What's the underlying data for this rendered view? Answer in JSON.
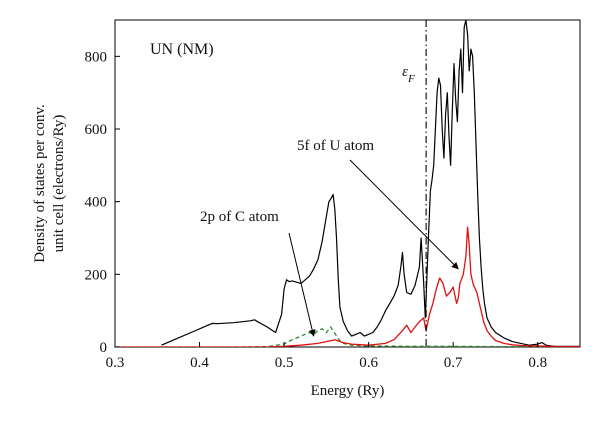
{
  "chart_data": {
    "type": "line",
    "title": "UN (NM)",
    "xlabel": "Energy (Ry)",
    "ylabel_lines": [
      "Density of states per conv.",
      "unit cell (electrons/Ry)"
    ],
    "xlim": [
      0.3,
      0.85
    ],
    "ylim": [
      0,
      900
    ],
    "xticks": [
      "0.3",
      "0.4",
      "0.5",
      "0.6",
      "0.7",
      "0.8"
    ],
    "yticks": [
      "0",
      "200",
      "400",
      "600",
      "800"
    ],
    "grid": false,
    "fermi_level": {
      "x": 0.668,
      "label": "ε",
      "subscript": "F"
    },
    "annotations": [
      {
        "text": "2p of C atom",
        "arrow_to": {
          "x": 0.535,
          "y": 30
        }
      },
      {
        "text": "5f of U atom",
        "arrow_to": {
          "x": 0.706,
          "y": 215
        }
      }
    ],
    "colors": {
      "total": "#000000",
      "u5f": "#e01010",
      "c2p": "#2a8a2a"
    },
    "series": [
      {
        "key": "total",
        "style": "solid",
        "x": [
          0.355,
          0.37,
          0.39,
          0.41,
          0.415,
          0.42,
          0.44,
          0.46,
          0.465,
          0.47,
          0.48,
          0.49,
          0.497,
          0.5,
          0.503,
          0.506,
          0.51,
          0.515,
          0.52,
          0.525,
          0.53,
          0.535,
          0.54,
          0.545,
          0.55,
          0.553,
          0.556,
          0.558,
          0.56,
          0.562,
          0.564,
          0.566,
          0.57,
          0.575,
          0.58,
          0.585,
          0.59,
          0.595,
          0.6,
          0.605,
          0.61,
          0.615,
          0.62,
          0.625,
          0.63,
          0.635,
          0.638,
          0.64,
          0.642,
          0.645,
          0.65,
          0.655,
          0.66,
          0.662,
          0.665,
          0.667,
          0.669,
          0.671,
          0.673,
          0.675,
          0.677,
          0.679,
          0.681,
          0.683,
          0.685,
          0.687,
          0.689,
          0.691,
          0.693,
          0.695,
          0.697,
          0.699,
          0.701,
          0.703,
          0.705,
          0.707,
          0.709,
          0.711,
          0.713,
          0.715,
          0.717,
          0.719,
          0.721,
          0.723,
          0.725,
          0.727,
          0.729,
          0.731,
          0.733,
          0.735,
          0.737,
          0.74,
          0.745,
          0.75,
          0.76,
          0.77,
          0.78,
          0.79,
          0.8,
          0.805,
          0.81,
          0.815,
          0.82,
          0.85
        ],
        "y": [
          5,
          20,
          40,
          60,
          65,
          64,
          67,
          72,
          75,
          68,
          55,
          40,
          90,
          160,
          185,
          180,
          182,
          178,
          175,
          185,
          195,
          215,
          240,
          290,
          360,
          400,
          410,
          420,
          380,
          300,
          190,
          110,
          70,
          45,
          30,
          35,
          40,
          30,
          35,
          40,
          55,
          75,
          100,
          120,
          140,
          170,
          220,
          260,
          200,
          150,
          145,
          170,
          220,
          300,
          180,
          80,
          200,
          320,
          430,
          460,
          500,
          600,
          700,
          740,
          720,
          600,
          520,
          640,
          700,
          580,
          500,
          650,
          780,
          680,
          620,
          760,
          820,
          700,
          880,
          900,
          860,
          760,
          820,
          800,
          700,
          560,
          420,
          300,
          220,
          160,
          120,
          80,
          55,
          40,
          25,
          15,
          10,
          5,
          8,
          12,
          5,
          3,
          2,
          2
        ]
      },
      {
        "key": "u5f",
        "style": "solid",
        "x": [
          0.3,
          0.4,
          0.48,
          0.5,
          0.52,
          0.54,
          0.55,
          0.56,
          0.57,
          0.58,
          0.6,
          0.62,
          0.63,
          0.64,
          0.645,
          0.65,
          0.655,
          0.66,
          0.665,
          0.668,
          0.672,
          0.676,
          0.68,
          0.684,
          0.688,
          0.692,
          0.696,
          0.7,
          0.704,
          0.706,
          0.708,
          0.712,
          0.715,
          0.717,
          0.719,
          0.721,
          0.724,
          0.728,
          0.732,
          0.736,
          0.74,
          0.745,
          0.75,
          0.76,
          0.77,
          0.78,
          0.79,
          0.8,
          0.81,
          0.82,
          0.85
        ],
        "y": [
          0,
          0,
          0,
          2,
          5,
          10,
          15,
          20,
          12,
          8,
          5,
          10,
          20,
          45,
          60,
          40,
          55,
          70,
          80,
          45,
          90,
          120,
          160,
          190,
          175,
          140,
          150,
          165,
          120,
          135,
          175,
          200,
          250,
          330,
          280,
          200,
          170,
          150,
          110,
          70,
          45,
          30,
          18,
          10,
          6,
          4,
          3,
          3,
          2,
          1,
          1
        ]
      },
      {
        "key": "c2p",
        "style": "dashed",
        "x": [
          0.3,
          0.45,
          0.48,
          0.5,
          0.505,
          0.51,
          0.515,
          0.52,
          0.525,
          0.53,
          0.535,
          0.54,
          0.545,
          0.55,
          0.555,
          0.56,
          0.565,
          0.57,
          0.58,
          0.6,
          0.65,
          0.7,
          0.75,
          0.8,
          0.85
        ],
        "y": [
          0,
          0,
          1,
          8,
          15,
          20,
          25,
          30,
          35,
          40,
          35,
          45,
          50,
          40,
          55,
          38,
          20,
          10,
          5,
          3,
          2,
          2,
          1,
          1,
          0
        ]
      }
    ]
  }
}
